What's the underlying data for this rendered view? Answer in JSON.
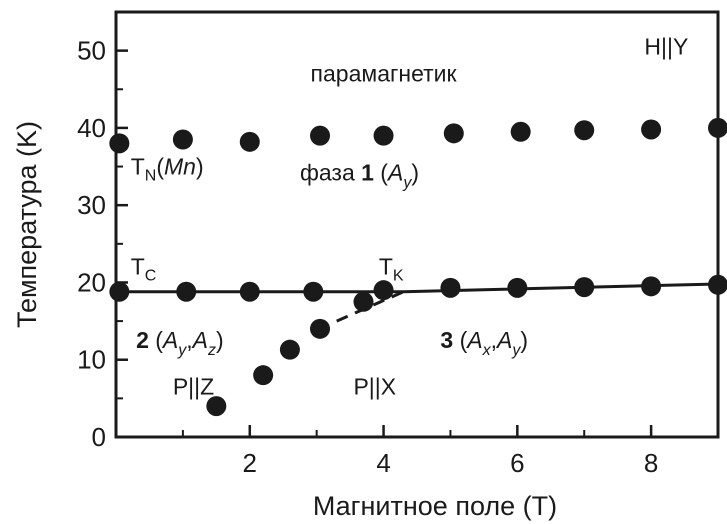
{
  "chart_data": {
    "type": "scatter",
    "xlabel": "Магнитное поле (Т)",
    "ylabel": "Температура (K)",
    "xlim": [
      0,
      9
    ],
    "ylim": [
      0,
      55
    ],
    "xticks": [
      2,
      4,
      6,
      8
    ],
    "yticks": [
      0,
      10,
      20,
      30,
      40,
      50
    ],
    "grid": false,
    "colors": {
      "marker": "#1a1a1a",
      "line": "#1a1a1a"
    },
    "series": [
      {
        "points": [
          [
            0.05,
            38.0
          ],
          [
            1.0,
            38.5
          ],
          [
            2.0,
            38.2
          ],
          [
            3.05,
            39.0
          ],
          [
            4.0,
            39.0
          ],
          [
            5.05,
            39.3
          ],
          [
            6.05,
            39.5
          ],
          [
            7.0,
            39.7
          ],
          [
            8.0,
            39.8
          ],
          [
            9.0,
            40.0
          ]
        ]
      },
      {
        "points": [
          [
            0.05,
            18.8
          ],
          [
            1.05,
            18.8
          ],
          [
            2.0,
            18.8
          ],
          [
            2.95,
            18.8
          ],
          [
            4.0,
            19.0
          ],
          [
            5.0,
            19.3
          ],
          [
            6.0,
            19.3
          ],
          [
            7.0,
            19.4
          ],
          [
            8.0,
            19.5
          ],
          [
            9.0,
            19.7
          ]
        ]
      },
      {
        "points": [
          [
            1.5,
            4.0
          ],
          [
            2.2,
            8.0
          ],
          [
            2.6,
            11.3
          ],
          [
            3.05,
            14.0
          ],
          [
            3.7,
            17.5
          ]
        ]
      }
    ],
    "lines": [
      {
        "style": "solid",
        "points": [
          [
            0,
            18.8
          ],
          [
            4.3,
            18.8
          ],
          [
            9,
            19.8
          ]
        ]
      },
      {
        "style": "dashed",
        "points": [
          [
            3.3,
            15.0
          ],
          [
            4.3,
            18.8
          ]
        ]
      }
    ],
    "annotations": {
      "paramagnet": {
        "text": "парамагнетик",
        "x": 4.0,
        "y": 46.0
      },
      "hy": {
        "text": "H||Y",
        "x": 7.9,
        "y": 49.5
      },
      "tn": {
        "text": "T",
        "sub": "N",
        "suffix_open": "(",
        "suffix_it": "Mn",
        "suffix_close": ")",
        "x": 0.22,
        "y": 34.0
      },
      "phase1": {
        "text": "фаза ",
        "bold": "1",
        "open": " (",
        "it": "A",
        "sub": "y",
        "close": ")",
        "x": 2.75,
        "y": 33.2
      },
      "tc": {
        "text": "T",
        "sub": "C",
        "x": 0.22,
        "y": 21.0
      },
      "tk": {
        "text": "T",
        "sub": "K",
        "x": 3.93,
        "y": 21.0
      },
      "phase2": {
        "bold": "2",
        "open": " (",
        "it1": "A",
        "sub1": "y",
        "comma": ",",
        "it2": "A",
        "sub2": "z",
        "close": ")",
        "x": 0.3,
        "y": 11.5
      },
      "phase3": {
        "bold": "3",
        "open": " (",
        "it1": "A",
        "sub1": "x",
        "comma": ",",
        "it2": "A",
        "sub2": "y",
        "close": ")",
        "x": 4.85,
        "y": 11.5
      },
      "pz": {
        "text": "P||Z",
        "x": 0.85,
        "y": 5.5
      },
      "px": {
        "text": "P||X",
        "x": 3.55,
        "y": 5.5
      }
    }
  }
}
